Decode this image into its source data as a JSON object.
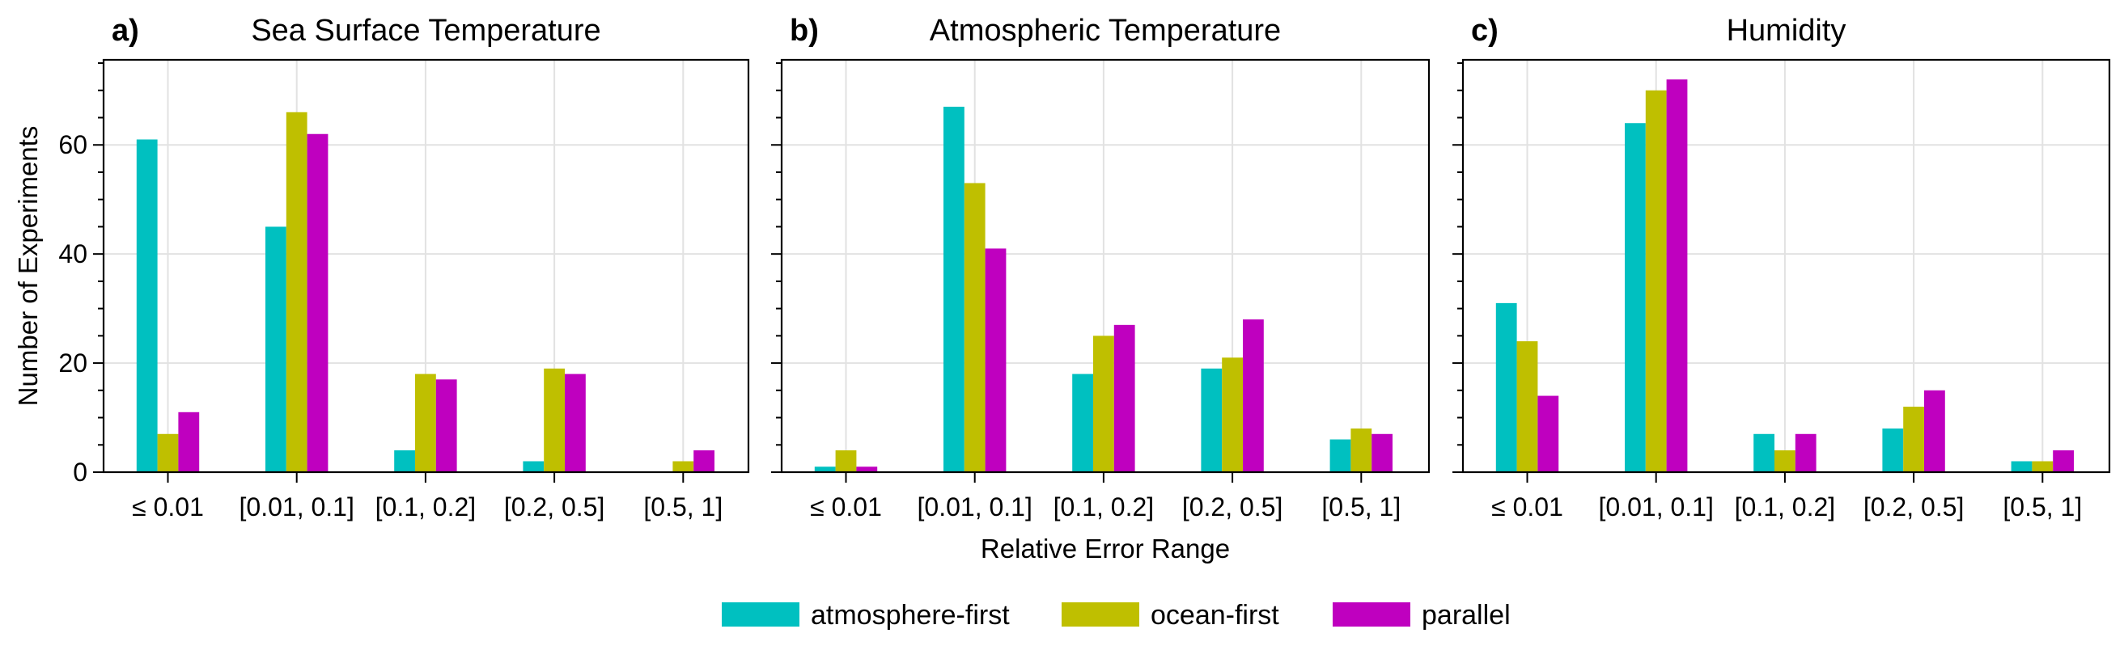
{
  "chart_data": [
    {
      "type": "bar",
      "panel": "a)",
      "title": "Sea Surface Temperature",
      "categories": [
        "≤ 0.01",
        "[0.01, 0.1]",
        "[0.1, 0.2]",
        "[0.2, 0.5]",
        "[0.5, 1]"
      ],
      "series": [
        {
          "name": "atmosphere-first",
          "values": [
            61,
            45,
            4,
            2,
            0
          ]
        },
        {
          "name": "ocean-first",
          "values": [
            7,
            66,
            18,
            19,
            2
          ]
        },
        {
          "name": "parallel",
          "values": [
            11,
            62,
            17,
            18,
            4
          ]
        }
      ],
      "ylabel": "Number of Experiments",
      "xlabel": "",
      "ylim": [
        0,
        75.6
      ],
      "yticks": [
        0,
        20,
        40,
        60
      ],
      "grid": true
    },
    {
      "type": "bar",
      "panel": "b)",
      "title": "Atmospheric Temperature",
      "categories": [
        "≤ 0.01",
        "[0.01, 0.1]",
        "[0.1, 0.2]",
        "[0.2, 0.5]",
        "[0.5, 1]"
      ],
      "series": [
        {
          "name": "atmosphere-first",
          "values": [
            1,
            67,
            18,
            19,
            6
          ]
        },
        {
          "name": "ocean-first",
          "values": [
            4,
            53,
            25,
            21,
            8
          ]
        },
        {
          "name": "parallel",
          "values": [
            1,
            41,
            27,
            28,
            7
          ]
        }
      ],
      "ylabel": "",
      "xlabel": "Relative Error Range",
      "ylim": [
        0,
        75.6
      ],
      "grid": true
    },
    {
      "type": "bar",
      "panel": "c)",
      "title": "Humidity",
      "categories": [
        "≤ 0.01",
        "[0.01, 0.1]",
        "[0.1, 0.2]",
        "[0.2, 0.5]",
        "[0.5, 1]"
      ],
      "series": [
        {
          "name": "atmosphere-first",
          "values": [
            31,
            64,
            7,
            8,
            2
          ]
        },
        {
          "name": "ocean-first",
          "values": [
            24,
            70,
            4,
            12,
            2
          ]
        },
        {
          "name": "parallel",
          "values": [
            14,
            72,
            7,
            15,
            4
          ]
        }
      ],
      "ylabel": "",
      "xlabel": "",
      "ylim": [
        0,
        75.6
      ],
      "grid": true
    }
  ],
  "legend": {
    "placement": "bottom-center",
    "items": [
      {
        "label": "atmosphere-first",
        "color": "#00c0c0"
      },
      {
        "label": "ocean-first",
        "color": "#bfbf00"
      },
      {
        "label": "parallel",
        "color": "#bf00bf"
      }
    ]
  },
  "colors": {
    "atmosphere-first": "#00c0c0",
    "ocean-first": "#bfbf00",
    "parallel": "#bf00bf"
  }
}
